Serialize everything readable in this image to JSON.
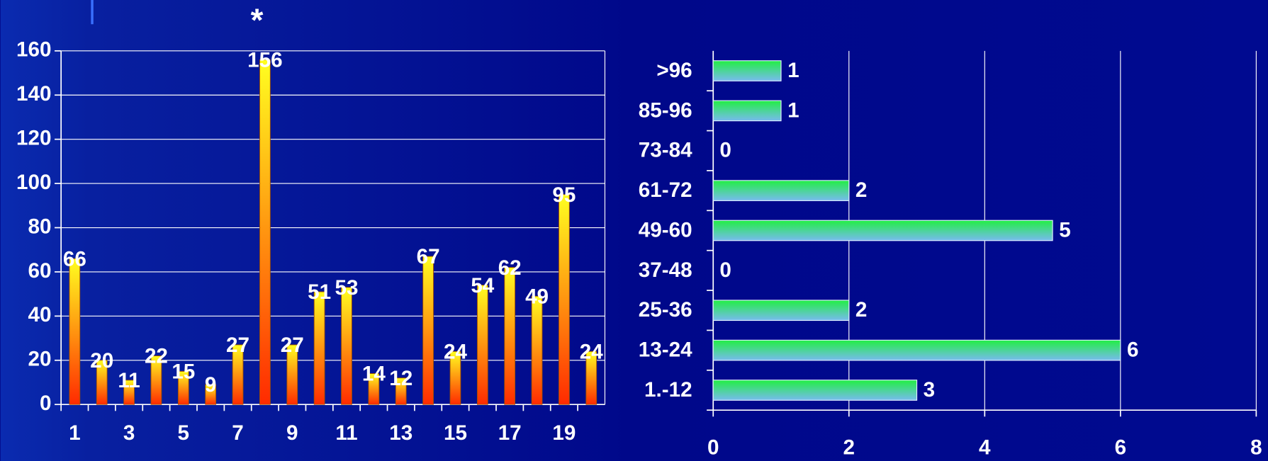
{
  "chart_data": [
    {
      "type": "bar",
      "annotation": "*",
      "categories": [
        "1",
        null,
        "3",
        null,
        "5",
        null,
        "7",
        null,
        "9",
        null,
        "11",
        null,
        "13",
        null,
        "15",
        null,
        "17",
        null,
        "19",
        null
      ],
      "values": [
        66,
        20,
        11,
        22,
        15,
        9,
        27,
        156,
        27,
        51,
        53,
        14,
        12,
        67,
        24,
        54,
        62,
        49,
        95,
        24
      ],
      "gradient": [
        "#ffff20",
        "#ff2a00"
      ],
      "ylim": [
        0,
        160
      ],
      "yticks": [
        0,
        20,
        40,
        60,
        80,
        100,
        120,
        140,
        160
      ],
      "grid": true
    },
    {
      "type": "hbar",
      "categories": [
        "1.-12",
        "13-24",
        "25-36",
        "37-48",
        "49-60",
        "61-72",
        "73-84",
        "85-96",
        ">96"
      ],
      "values": [
        3,
        6,
        2,
        0,
        5,
        2,
        0,
        1,
        1
      ],
      "gradient": [
        "#22ee44",
        "#77bbee"
      ],
      "xlim": [
        0,
        8
      ],
      "xticks": [
        0,
        2,
        4,
        6,
        8
      ],
      "grid": true
    }
  ]
}
